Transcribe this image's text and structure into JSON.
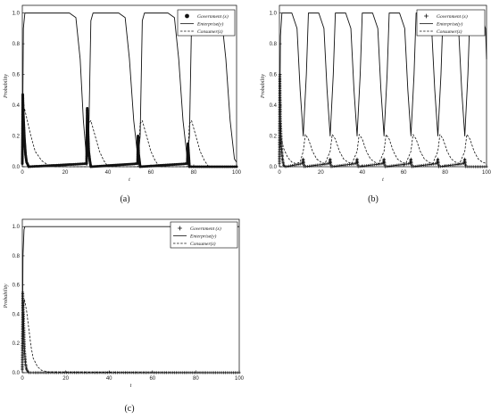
{
  "chart_data": [
    {
      "type": "line",
      "caption": "(a)",
      "xlabel": "t",
      "ylabel": "Probability",
      "xlim": [
        0,
        100
      ],
      "ylim": [
        0,
        1.05
      ],
      "xticks": [
        "0",
        "20",
        "40",
        "60",
        "80",
        "100"
      ],
      "yticks": [
        "0.0",
        "0.2",
        "0.4",
        "0.6",
        "0.8",
        "1.0"
      ],
      "legend_position": "top-right",
      "series": [
        {
          "name": "Government (x)",
          "style": "markers",
          "marker": "dot",
          "x": [
            0,
            0.2,
            0.5,
            1,
            1.5,
            2,
            3,
            30,
            30.3,
            30.6,
            31,
            31.5,
            32,
            53.8,
            54,
            54.3,
            55,
            77,
            77.3,
            78,
            100
          ],
          "y": [
            0.02,
            0.47,
            0.33,
            0.18,
            0.08,
            0.03,
            0.0,
            0.02,
            0.38,
            0.25,
            0.1,
            0.04,
            0.0,
            0.02,
            0.2,
            0.08,
            0.0,
            0.02,
            0.15,
            0.0,
            0.0
          ]
        },
        {
          "name": "Enterprise(y)",
          "style": "solid",
          "x": [
            0,
            0.5,
            1.2,
            22,
            25,
            27,
            28.5,
            30,
            31,
            32,
            33,
            45,
            48,
            50,
            52,
            54,
            55,
            56,
            57,
            68,
            71,
            73,
            75,
            77,
            78,
            79,
            80,
            90,
            93,
            95,
            97,
            99,
            100
          ],
          "y": [
            0.0,
            0.9,
            1.0,
            1.0,
            0.97,
            0.7,
            0.3,
            0.05,
            0.2,
            0.95,
            1.0,
            1.0,
            0.97,
            0.7,
            0.3,
            0.05,
            0.2,
            0.95,
            1.0,
            1.0,
            0.97,
            0.7,
            0.3,
            0.05,
            0.2,
            0.95,
            1.0,
            1.0,
            0.97,
            0.7,
            0.3,
            0.05,
            0.03
          ]
        },
        {
          "name": "Consumer(z)",
          "style": "dashed",
          "x": [
            0,
            1,
            2,
            4,
            6,
            9,
            12,
            15,
            30,
            31,
            32,
            34,
            36,
            38,
            40,
            54,
            55,
            56,
            58,
            60,
            62,
            64,
            77,
            78,
            79,
            81,
            83,
            85,
            87,
            100
          ],
          "y": [
            0.1,
            0.38,
            0.32,
            0.2,
            0.1,
            0.04,
            0.01,
            0.0,
            0.0,
            0.28,
            0.3,
            0.2,
            0.1,
            0.04,
            0.0,
            0.0,
            0.28,
            0.3,
            0.2,
            0.1,
            0.04,
            0.0,
            0.0,
            0.28,
            0.3,
            0.2,
            0.1,
            0.04,
            0.0,
            0.0
          ]
        }
      ]
    },
    {
      "type": "line",
      "caption": "(b)",
      "xlabel": "t",
      "ylabel": "Probability",
      "xlim": [
        0,
        100
      ],
      "ylim": [
        0,
        1.05
      ],
      "xticks": [
        "0",
        "20",
        "40",
        "60",
        "80",
        "100"
      ],
      "yticks": [
        "0.0",
        "0.2",
        "0.4",
        "0.6",
        "0.8",
        "1.0"
      ],
      "legend_position": "top-right",
      "series": [
        {
          "name": "Government (x)",
          "style": "markers",
          "marker": "plus",
          "x": [
            0,
            0.2,
            0.5,
            1,
            1.5,
            2,
            3,
            11,
            11.5,
            12,
            24,
            24.5,
            25,
            37,
            37.5,
            38,
            50,
            50.5,
            51,
            63,
            63.5,
            64,
            76,
            76.5,
            77,
            89,
            89.5,
            90,
            100
          ],
          "y": [
            0.02,
            0.6,
            0.3,
            0.12,
            0.05,
            0.01,
            0.0,
            0.02,
            0.05,
            0.0,
            0.02,
            0.05,
            0.0,
            0.02,
            0.05,
            0.0,
            0.02,
            0.05,
            0.0,
            0.02,
            0.05,
            0.0,
            0.02,
            0.05,
            0.0,
            0.02,
            0.05,
            0.0,
            0.0
          ]
        },
        {
          "name": "Enterprise(y)",
          "style": "solid",
          "x": [
            0,
            0.5,
            1.2,
            6,
            8.5,
            10,
            11.5,
            13,
            14,
            19,
            21.5,
            23,
            24.5,
            26,
            27,
            32,
            34.5,
            36,
            37.5,
            39,
            40,
            45,
            47.5,
            49,
            50.5,
            52,
            53,
            58,
            60.5,
            62,
            63.5,
            65,
            66,
            71,
            73.5,
            75,
            76.5,
            78,
            79,
            84,
            86.5,
            88,
            89.5,
            91,
            92,
            97,
            99.5,
            100
          ],
          "y": [
            0.0,
            0.85,
            1.0,
            1.0,
            0.9,
            0.5,
            0.2,
            0.6,
            1.0,
            1.0,
            0.9,
            0.5,
            0.2,
            0.6,
            1.0,
            1.0,
            0.9,
            0.5,
            0.2,
            0.6,
            1.0,
            1.0,
            0.9,
            0.5,
            0.2,
            0.6,
            1.0,
            1.0,
            0.9,
            0.5,
            0.2,
            0.6,
            1.0,
            1.0,
            0.9,
            0.5,
            0.2,
            0.6,
            1.0,
            1.0,
            0.9,
            0.5,
            0.2,
            0.6,
            1.0,
            1.0,
            0.9,
            0.7
          ]
        },
        {
          "name": "Consumer(z)",
          "style": "dashed",
          "x": [
            0,
            1,
            2,
            4,
            6,
            8,
            10,
            11.5,
            12.5,
            14,
            16,
            18,
            20,
            22,
            24.5,
            25.5,
            27,
            29,
            31,
            33,
            35,
            37.5,
            38.5,
            40,
            42,
            44,
            46,
            48,
            50.5,
            51.5,
            53,
            55,
            57,
            59,
            61,
            63.5,
            64.5,
            66,
            68,
            70,
            72,
            74,
            76.5,
            77.5,
            79,
            81,
            83,
            85,
            87,
            89.5,
            90.5,
            92,
            94,
            96,
            98,
            100
          ],
          "y": [
            0.1,
            0.18,
            0.12,
            0.06,
            0.03,
            0.02,
            0.03,
            0.1,
            0.21,
            0.18,
            0.1,
            0.05,
            0.03,
            0.02,
            0.1,
            0.21,
            0.18,
            0.1,
            0.05,
            0.03,
            0.02,
            0.1,
            0.21,
            0.18,
            0.1,
            0.05,
            0.03,
            0.02,
            0.1,
            0.21,
            0.18,
            0.1,
            0.05,
            0.03,
            0.02,
            0.1,
            0.21,
            0.18,
            0.1,
            0.05,
            0.03,
            0.02,
            0.1,
            0.21,
            0.18,
            0.1,
            0.05,
            0.03,
            0.02,
            0.1,
            0.21,
            0.18,
            0.1,
            0.05,
            0.03,
            0.02
          ]
        }
      ]
    },
    {
      "type": "line",
      "caption": "(c)",
      "xlabel": "t",
      "ylabel": "Probability",
      "xlim": [
        0,
        100
      ],
      "ylim": [
        0,
        1.05
      ],
      "xticks": [
        "0",
        "20",
        "40",
        "60",
        "80",
        "100"
      ],
      "yticks": [
        "0.0",
        "0.2",
        "0.4",
        "0.6",
        "0.8",
        "1.0"
      ],
      "legend_position": "top-right",
      "series": [
        {
          "name": "Government (x)",
          "style": "markers",
          "marker": "plus",
          "x": [
            0,
            0.2,
            0.4,
            0.7,
            1,
            1.5,
            2,
            3,
            5,
            100
          ],
          "y": [
            0.02,
            0.55,
            0.45,
            0.3,
            0.15,
            0.06,
            0.02,
            0.0,
            0.0,
            0.0
          ]
        },
        {
          "name": "Enterprise(y)",
          "style": "solid",
          "x": [
            0,
            0.3,
            0.8,
            1.2,
            100
          ],
          "y": [
            0.0,
            0.8,
            0.98,
            1.0,
            1.0
          ]
        },
        {
          "name": "Consumer(z)",
          "style": "dashed",
          "x": [
            0,
            0.5,
            1,
            2,
            3,
            4,
            5,
            7,
            9,
            12,
            100
          ],
          "y": [
            0.05,
            0.45,
            0.5,
            0.42,
            0.3,
            0.18,
            0.1,
            0.04,
            0.015,
            0.005,
            0.0
          ]
        }
      ]
    }
  ]
}
